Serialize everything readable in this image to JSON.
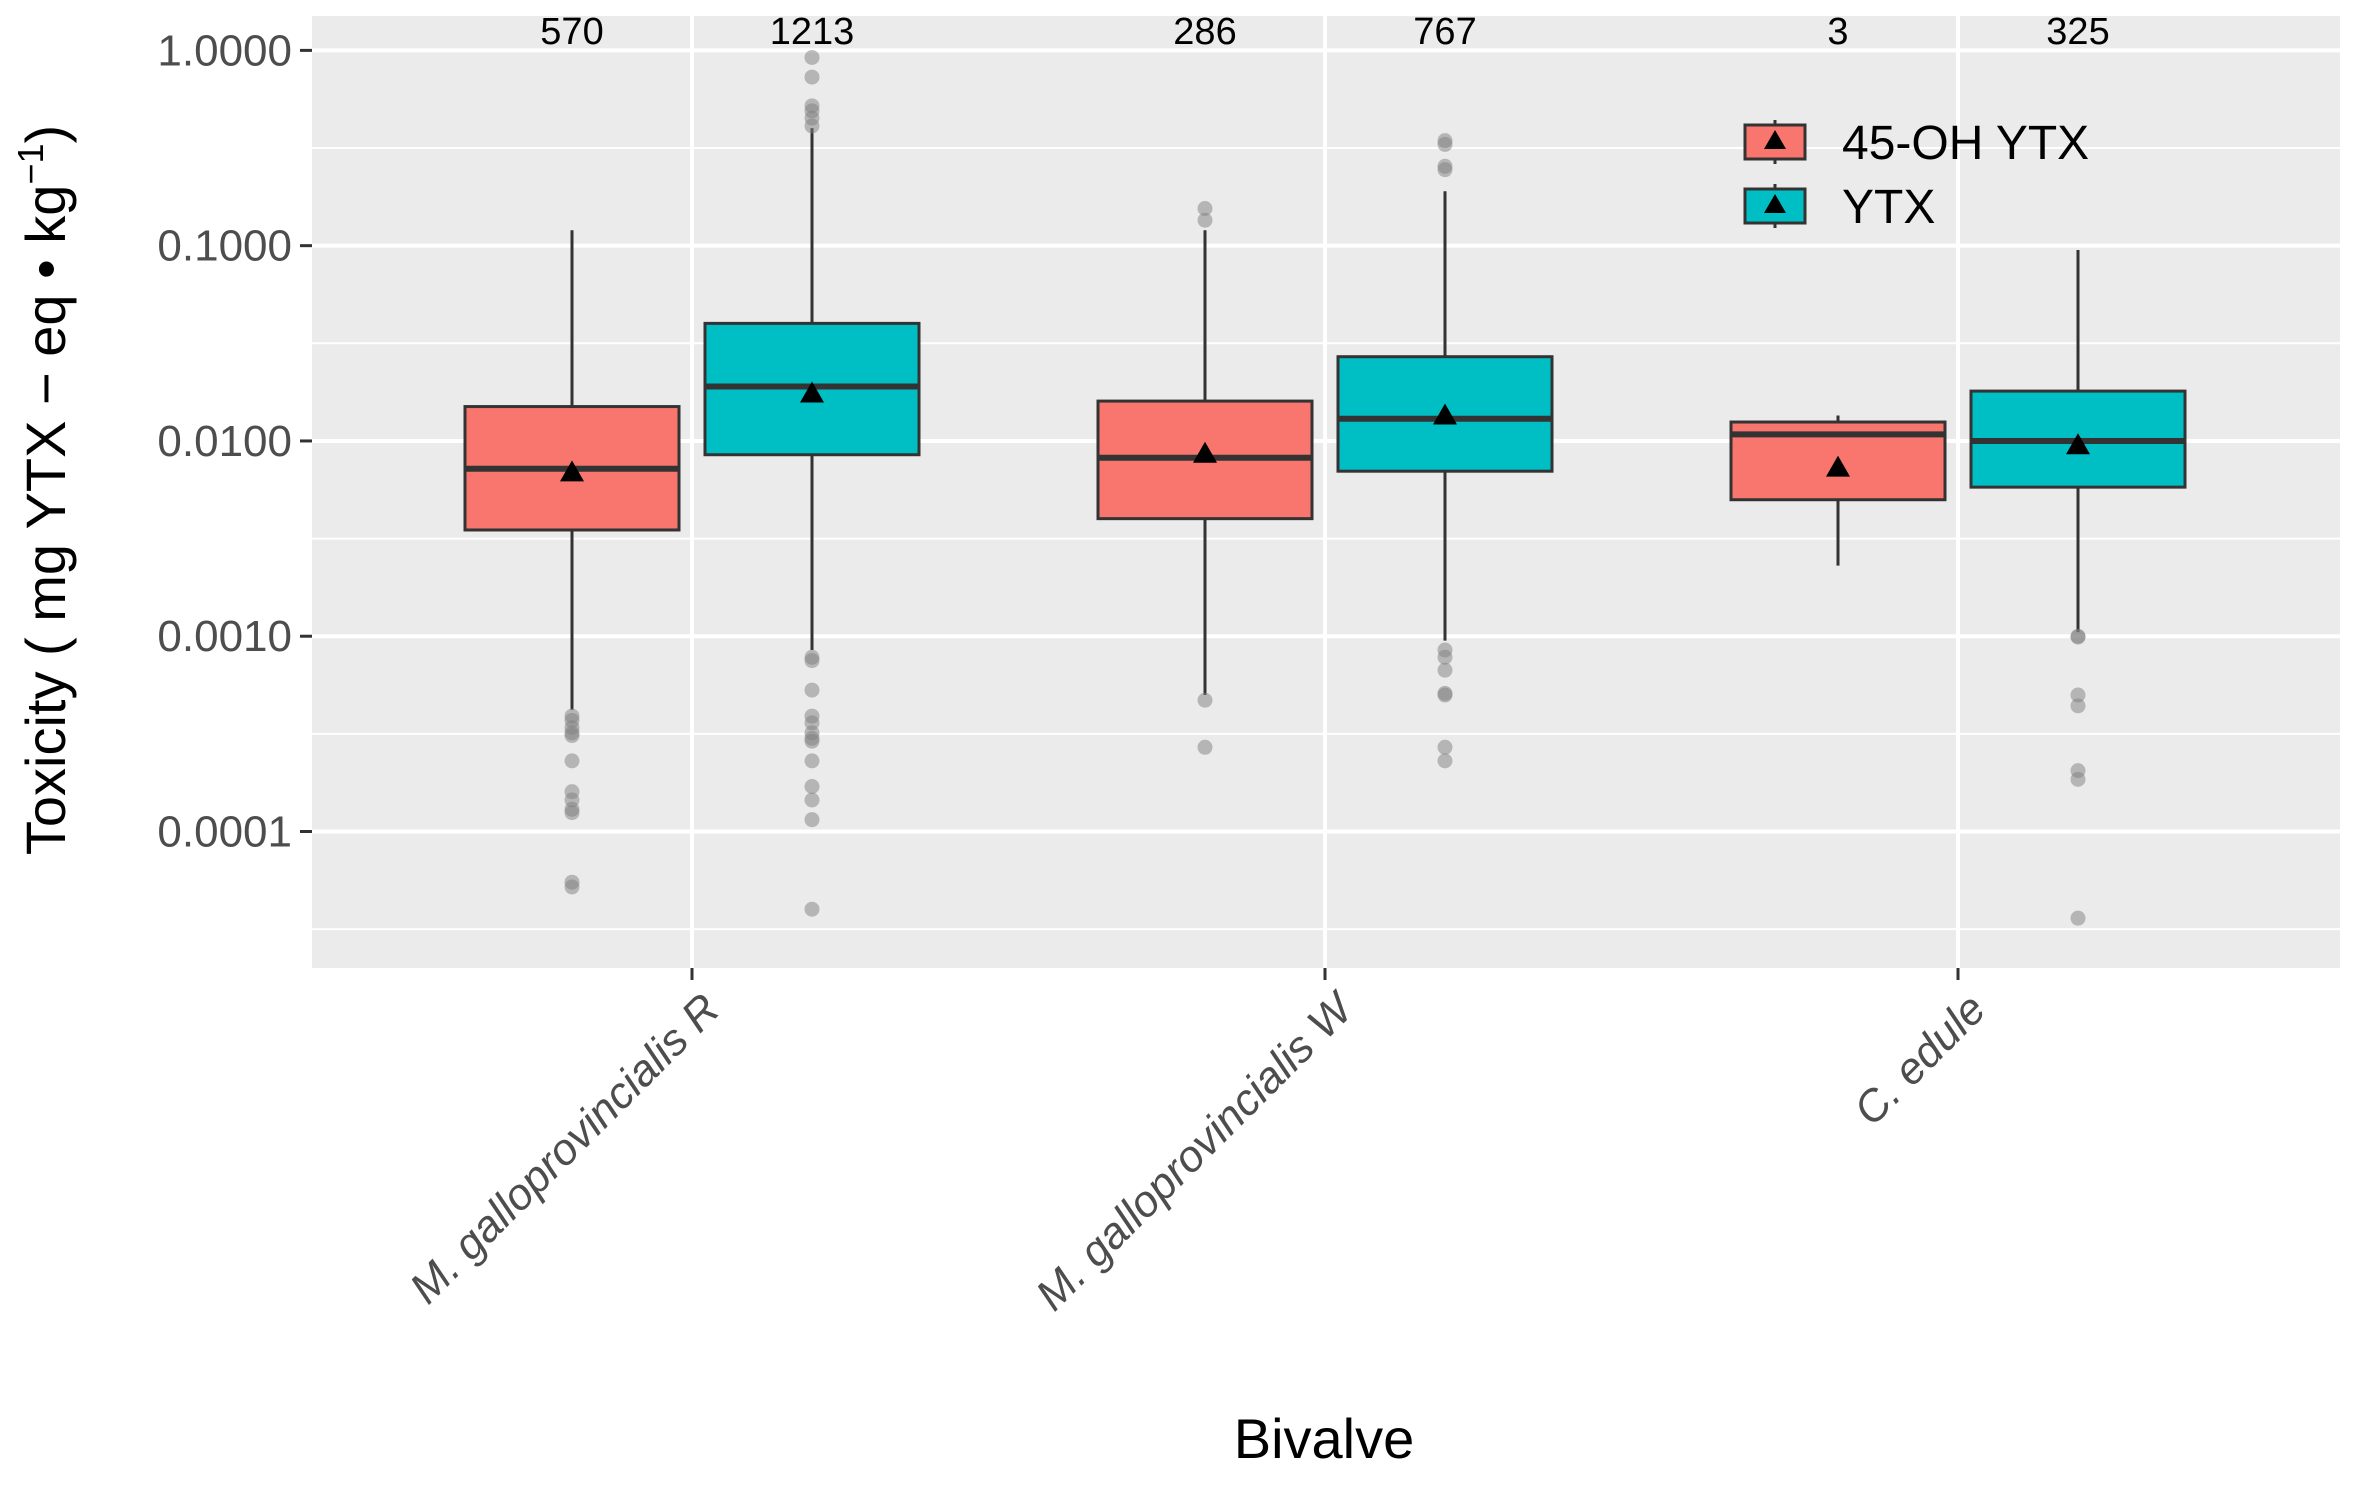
{
  "chart_data": {
    "type": "boxplot",
    "xlabel": "Bivalve",
    "ylabel_main": "Toxicity ( mg YTX − eq • kg",
    "ylabel_sup": "−1",
    "ylabel_end": ")",
    "y_scale": "log10",
    "ylim": [
      2e-05,
      1.5
    ],
    "y_ticks": [
      0.0001,
      0.001,
      0.01,
      0.1,
      1.0
    ],
    "y_tick_labels": [
      "0.0001",
      "0.0010",
      "0.0100",
      "0.1000",
      "1.0000"
    ],
    "categories": [
      "M. galloprovincialis R",
      "M. galloprovincialis W",
      "C. edule"
    ],
    "series": [
      {
        "name": "45-OH YTX",
        "color": "#F8766D"
      },
      {
        "name": "YTX",
        "color": "#00BFC4"
      }
    ],
    "boxes": [
      {
        "category": 0,
        "series": 0,
        "count": "570",
        "whisker_low": 0.00042,
        "q1": 0.0035,
        "median": 0.0072,
        "q3": 0.015,
        "whisker_high": 0.12,
        "mean": 0.0069,
        "outliers": [
          0.00039,
          0.00037,
          0.00034,
          0.00032,
          0.00031,
          0.00023,
          0.00016,
          0.000145,
          0.00013,
          0.000125,
          5.5e-05,
          5.2e-05
        ]
      },
      {
        "category": 0,
        "series": 1,
        "count": "1213",
        "whisker_low": 0.00085,
        "q1": 0.0085,
        "median": 0.019,
        "q3": 0.04,
        "whisker_high": 0.4,
        "mean": 0.0175,
        "outliers": [
          0.92,
          0.73,
          0.52,
          0.49,
          0.45,
          0.41,
          0.00078,
          0.00075,
          0.00053,
          0.00039,
          0.00036,
          0.00032,
          0.0003,
          0.00029,
          0.00023,
          0.00017,
          0.000145,
          0.000115,
          4e-05
        ]
      },
      {
        "category": 1,
        "series": 0,
        "count": "286",
        "whisker_low": 0.0005,
        "q1": 0.004,
        "median": 0.0082,
        "q3": 0.016,
        "whisker_high": 0.12,
        "mean": 0.0086,
        "outliers": [
          0.155,
          0.135,
          0.00047,
          0.00027
        ]
      },
      {
        "category": 1,
        "series": 1,
        "count": "767",
        "whisker_low": 0.00095,
        "q1": 0.007,
        "median": 0.013,
        "q3": 0.027,
        "whisker_high": 0.19,
        "mean": 0.0135,
        "outliers": [
          0.345,
          0.33,
          0.255,
          0.245,
          0.00085,
          0.00078,
          0.00067,
          0.00051,
          0.0005,
          0.00027,
          0.00023
        ]
      },
      {
        "category": 2,
        "series": 0,
        "count": "3",
        "whisker_low": 0.0023,
        "q1": 0.005,
        "median": 0.0108,
        "q3": 0.0125,
        "whisker_high": 0.0135,
        "mean": 0.0073,
        "outliers": []
      },
      {
        "category": 2,
        "series": 1,
        "count": "325",
        "whisker_low": 0.00105,
        "q1": 0.0058,
        "median": 0.01,
        "q3": 0.018,
        "whisker_high": 0.095,
        "mean": 0.0095,
        "outliers": [
          0.001,
          0.00099,
          0.0005,
          0.00044,
          0.000205,
          0.000185,
          3.6e-05
        ]
      }
    ],
    "legend": {
      "position": "top-right",
      "entries": [
        "45-OH YTX",
        "YTX"
      ]
    },
    "grid": true,
    "panel_background": "#EBEBEB",
    "grid_color": "#FFFFFF",
    "outlier_color": "#7f7f7f"
  }
}
